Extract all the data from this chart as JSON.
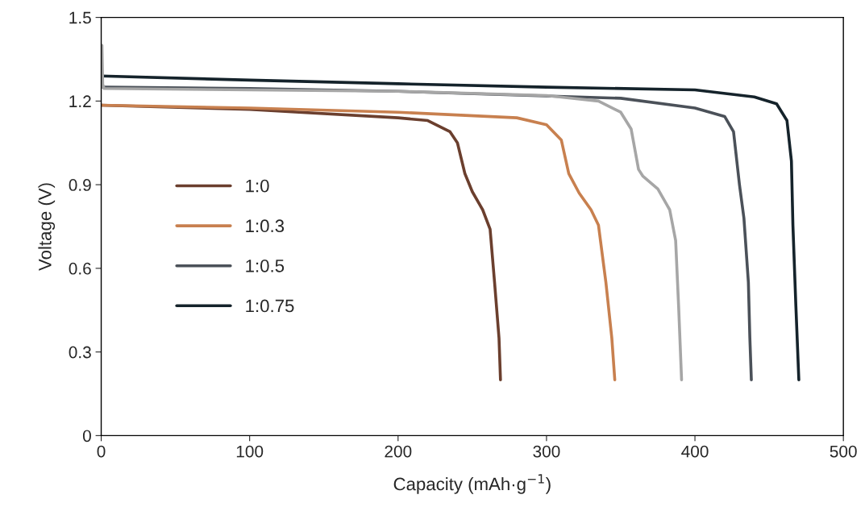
{
  "chart_data": {
    "type": "line",
    "xlabel": "Capacity (mAh·g$^{−1}$)",
    "ylabel": "Voltage (V)",
    "xlim": [
      0,
      500
    ],
    "xticks": [
      0,
      100,
      200,
      300,
      400,
      500
    ],
    "ylim": [
      0,
      1.5
    ],
    "yticks": [
      {
        "value": 0,
        "label": "0"
      },
      {
        "value": 0.3,
        "label": "0.3"
      },
      {
        "value": 0.6,
        "label": "0.6"
      },
      {
        "value": 0.9,
        "label": "0.9"
      },
      {
        "value": 1.2,
        "label": "1.2"
      },
      {
        "value": 1.5,
        "label": "1.5"
      }
    ],
    "grid": false,
    "legend": "left",
    "marker": "none",
    "line_style": "solid",
    "series": [
      {
        "name": "1:0",
        "color": "#6b3f2e",
        "x": [
          0,
          100,
          200,
          220,
          235,
          240,
          245,
          250,
          257,
          262,
          265,
          268,
          269
        ],
        "values": [
          1.185,
          1.17,
          1.14,
          1.13,
          1.09,
          1.05,
          0.94,
          0.875,
          0.81,
          0.74,
          0.55,
          0.35,
          0.2
        ]
      },
      {
        "name": "1:0.3",
        "color": "#c8804f",
        "x": [
          0,
          100,
          200,
          280,
          300,
          310,
          315,
          322,
          330,
          335,
          340,
          344,
          346
        ],
        "values": [
          1.185,
          1.175,
          1.16,
          1.14,
          1.115,
          1.06,
          0.94,
          0.87,
          0.81,
          0.755,
          0.55,
          0.35,
          0.2
        ]
      },
      {
        "name": "1:0.5",
        "color": "#4b5159",
        "x": [
          0,
          1,
          2,
          100,
          200,
          350,
          400,
          420,
          426,
          430,
          433,
          436,
          437,
          438
        ],
        "values": [
          1.27,
          1.25,
          1.25,
          1.245,
          1.235,
          1.21,
          1.175,
          1.145,
          1.09,
          0.9,
          0.78,
          0.55,
          0.35,
          0.2
        ]
      },
      {
        "name": "1:0.75",
        "color": "#15232b",
        "x": [
          0,
          100,
          200,
          300,
          400,
          440,
          455,
          462,
          465,
          466,
          468,
          470
        ],
        "values": [
          1.29,
          1.275,
          1.262,
          1.25,
          1.24,
          1.215,
          1.19,
          1.13,
          0.985,
          0.755,
          0.465,
          0.2
        ]
      },
      {
        "color": "#a6a6a6",
        "x": [
          0,
          0.5,
          1,
          2,
          100,
          200,
          300,
          335,
          350,
          357,
          362,
          365,
          375,
          383,
          387,
          389,
          391
        ],
        "values": [
          1.25,
          1.4,
          1.26,
          1.245,
          1.24,
          1.235,
          1.22,
          1.2,
          1.16,
          1.1,
          0.955,
          0.93,
          0.885,
          0.81,
          0.7,
          0.465,
          0.2
        ]
      }
    ]
  }
}
